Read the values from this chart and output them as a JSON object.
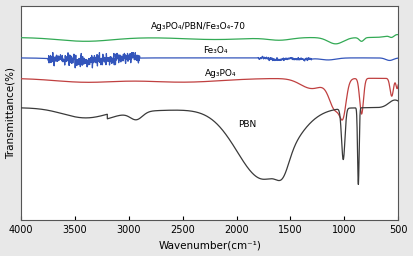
{
  "title": "",
  "xlabel": "Wavenumber(cm⁻¹)",
  "ylabel": "Transmittance(%)",
  "xlim": [
    4000,
    500
  ],
  "xticks": [
    4000,
    3500,
    3000,
    2500,
    2000,
    1500,
    1000,
    500
  ],
  "background_color": "#e8e8e8",
  "plot_bg_color": "#ffffff",
  "line_colors": {
    "PBN": "#3a3a3a",
    "Ag3PO4": "#c04040",
    "Fe3O4": "#3355bb",
    "composite": "#33aa55"
  },
  "label_texts": {
    "PBN": "PBN",
    "Ag3PO4": "Ag₃PO₄",
    "Fe3O4": "Fe₃O₄",
    "composite": "Ag₃PO₄/PBN/Fe₃O₄-70"
  }
}
